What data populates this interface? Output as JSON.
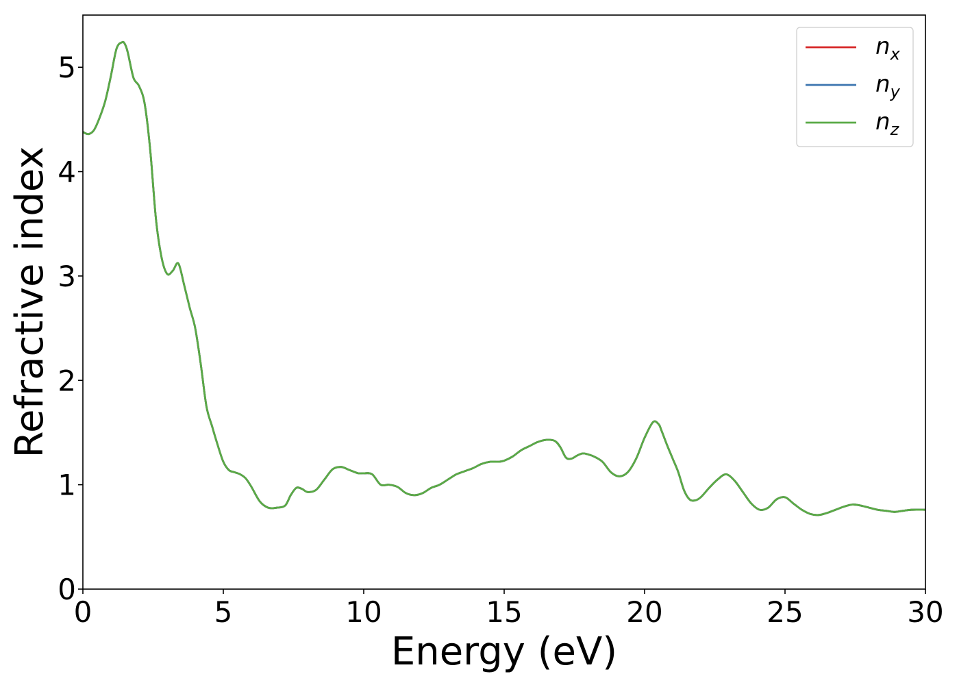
{
  "chart_data": {
    "type": "line",
    "title": "",
    "xlabel": "Energy (eV)",
    "ylabel": "Refractive index",
    "xlim": [
      0,
      30
    ],
    "ylim": [
      0,
      5.5
    ],
    "xticks": [
      0,
      5,
      10,
      15,
      20,
      25,
      30
    ],
    "yticks": [
      0,
      1,
      2,
      3,
      4,
      5
    ],
    "grid": false,
    "legend": {
      "placement": "top-right",
      "entries": [
        {
          "base": "n",
          "sub": "x",
          "color": "#d62728"
        },
        {
          "base": "n",
          "sub": "y",
          "color": "#3b75af"
        },
        {
          "base": "n",
          "sub": "z",
          "color": "#5aaa46"
        }
      ]
    },
    "x": [
      0,
      0.2,
      0.4,
      0.6,
      0.8,
      1.0,
      1.2,
      1.4,
      1.5,
      1.6,
      1.8,
      2.0,
      2.2,
      2.4,
      2.6,
      2.8,
      3.0,
      3.2,
      3.4,
      3.6,
      3.8,
      4.0,
      4.2,
      4.4,
      4.6,
      4.8,
      5.0,
      5.2,
      5.4,
      5.6,
      5.8,
      6.0,
      6.3,
      6.6,
      6.9,
      7.2,
      7.4,
      7.6,
      7.8,
      8.0,
      8.3,
      8.6,
      8.9,
      9.2,
      9.5,
      9.8,
      10.0,
      10.3,
      10.6,
      10.9,
      11.2,
      11.5,
      11.8,
      12.1,
      12.4,
      12.7,
      13.0,
      13.3,
      13.6,
      13.9,
      14.2,
      14.5,
      14.8,
      15.0,
      15.3,
      15.6,
      15.9,
      16.2,
      16.5,
      16.8,
      17.0,
      17.2,
      17.4,
      17.6,
      17.8,
      18.0,
      18.2,
      18.5,
      18.8,
      19.1,
      19.4,
      19.7,
      20.0,
      20.3,
      20.5,
      20.6,
      20.8,
      21.0,
      21.2,
      21.4,
      21.6,
      21.8,
      22.0,
      22.3,
      22.6,
      22.9,
      23.2,
      23.5,
      23.8,
      24.1,
      24.4,
      24.7,
      25.0,
      25.3,
      25.6,
      25.9,
      26.2,
      26.5,
      26.8,
      27.1,
      27.4,
      27.7,
      28.0,
      28.3,
      28.6,
      28.9,
      29.2,
      29.5,
      30.0
    ],
    "series": [
      {
        "name": "n_x",
        "color": "#d62728",
        "values": [
          4.38,
          4.36,
          4.4,
          4.52,
          4.68,
          4.92,
          5.18,
          5.24,
          5.22,
          5.14,
          4.9,
          4.82,
          4.65,
          4.2,
          3.55,
          3.18,
          3.02,
          3.05,
          3.12,
          2.92,
          2.7,
          2.5,
          2.15,
          1.75,
          1.56,
          1.38,
          1.22,
          1.14,
          1.12,
          1.1,
          1.06,
          0.98,
          0.84,
          0.78,
          0.78,
          0.8,
          0.9,
          0.97,
          0.96,
          0.93,
          0.95,
          1.05,
          1.15,
          1.17,
          1.14,
          1.11,
          1.11,
          1.1,
          1.0,
          1.0,
          0.98,
          0.92,
          0.9,
          0.92,
          0.97,
          1.0,
          1.05,
          1.1,
          1.13,
          1.16,
          1.2,
          1.22,
          1.22,
          1.23,
          1.27,
          1.33,
          1.37,
          1.41,
          1.43,
          1.42,
          1.36,
          1.26,
          1.25,
          1.28,
          1.3,
          1.29,
          1.27,
          1.22,
          1.12,
          1.08,
          1.12,
          1.25,
          1.45,
          1.6,
          1.58,
          1.52,
          1.38,
          1.25,
          1.12,
          0.95,
          0.86,
          0.85,
          0.88,
          0.97,
          1.05,
          1.1,
          1.04,
          0.93,
          0.82,
          0.76,
          0.78,
          0.86,
          0.88,
          0.82,
          0.76,
          0.72,
          0.71,
          0.73,
          0.76,
          0.79,
          0.81,
          0.8,
          0.78,
          0.76,
          0.75,
          0.74,
          0.75,
          0.76,
          0.76
        ]
      },
      {
        "name": "n_y",
        "color": "#3b75af",
        "values": [
          4.38,
          4.36,
          4.4,
          4.52,
          4.68,
          4.92,
          5.18,
          5.24,
          5.22,
          5.14,
          4.9,
          4.82,
          4.65,
          4.2,
          3.55,
          3.18,
          3.02,
          3.05,
          3.12,
          2.92,
          2.7,
          2.5,
          2.15,
          1.75,
          1.56,
          1.38,
          1.22,
          1.14,
          1.12,
          1.1,
          1.06,
          0.98,
          0.84,
          0.78,
          0.78,
          0.8,
          0.9,
          0.97,
          0.96,
          0.93,
          0.95,
          1.05,
          1.15,
          1.17,
          1.14,
          1.11,
          1.11,
          1.1,
          1.0,
          1.0,
          0.98,
          0.92,
          0.9,
          0.92,
          0.97,
          1.0,
          1.05,
          1.1,
          1.13,
          1.16,
          1.2,
          1.22,
          1.22,
          1.23,
          1.27,
          1.33,
          1.37,
          1.41,
          1.43,
          1.42,
          1.36,
          1.26,
          1.25,
          1.28,
          1.3,
          1.29,
          1.27,
          1.22,
          1.12,
          1.08,
          1.12,
          1.25,
          1.45,
          1.6,
          1.58,
          1.52,
          1.38,
          1.25,
          1.12,
          0.95,
          0.86,
          0.85,
          0.88,
          0.97,
          1.05,
          1.1,
          1.04,
          0.93,
          0.82,
          0.76,
          0.78,
          0.86,
          0.88,
          0.82,
          0.76,
          0.72,
          0.71,
          0.73,
          0.76,
          0.79,
          0.81,
          0.8,
          0.78,
          0.76,
          0.75,
          0.74,
          0.75,
          0.76,
          0.76
        ]
      },
      {
        "name": "n_z",
        "color": "#5aaa46",
        "values": [
          4.38,
          4.36,
          4.4,
          4.52,
          4.68,
          4.92,
          5.18,
          5.24,
          5.22,
          5.14,
          4.9,
          4.82,
          4.65,
          4.2,
          3.55,
          3.18,
          3.02,
          3.05,
          3.12,
          2.92,
          2.7,
          2.5,
          2.15,
          1.75,
          1.56,
          1.38,
          1.22,
          1.14,
          1.12,
          1.1,
          1.06,
          0.98,
          0.84,
          0.78,
          0.78,
          0.8,
          0.9,
          0.97,
          0.96,
          0.93,
          0.95,
          1.05,
          1.15,
          1.17,
          1.14,
          1.11,
          1.11,
          1.1,
          1.0,
          1.0,
          0.98,
          0.92,
          0.9,
          0.92,
          0.97,
          1.0,
          1.05,
          1.1,
          1.13,
          1.16,
          1.2,
          1.22,
          1.22,
          1.23,
          1.27,
          1.33,
          1.37,
          1.41,
          1.43,
          1.42,
          1.36,
          1.26,
          1.25,
          1.28,
          1.3,
          1.29,
          1.27,
          1.22,
          1.12,
          1.08,
          1.12,
          1.25,
          1.45,
          1.6,
          1.58,
          1.52,
          1.38,
          1.25,
          1.12,
          0.95,
          0.86,
          0.85,
          0.88,
          0.97,
          1.05,
          1.1,
          1.04,
          0.93,
          0.82,
          0.76,
          0.78,
          0.86,
          0.88,
          0.82,
          0.76,
          0.72,
          0.71,
          0.73,
          0.76,
          0.79,
          0.81,
          0.8,
          0.78,
          0.76,
          0.75,
          0.74,
          0.75,
          0.76,
          0.76
        ]
      }
    ]
  }
}
